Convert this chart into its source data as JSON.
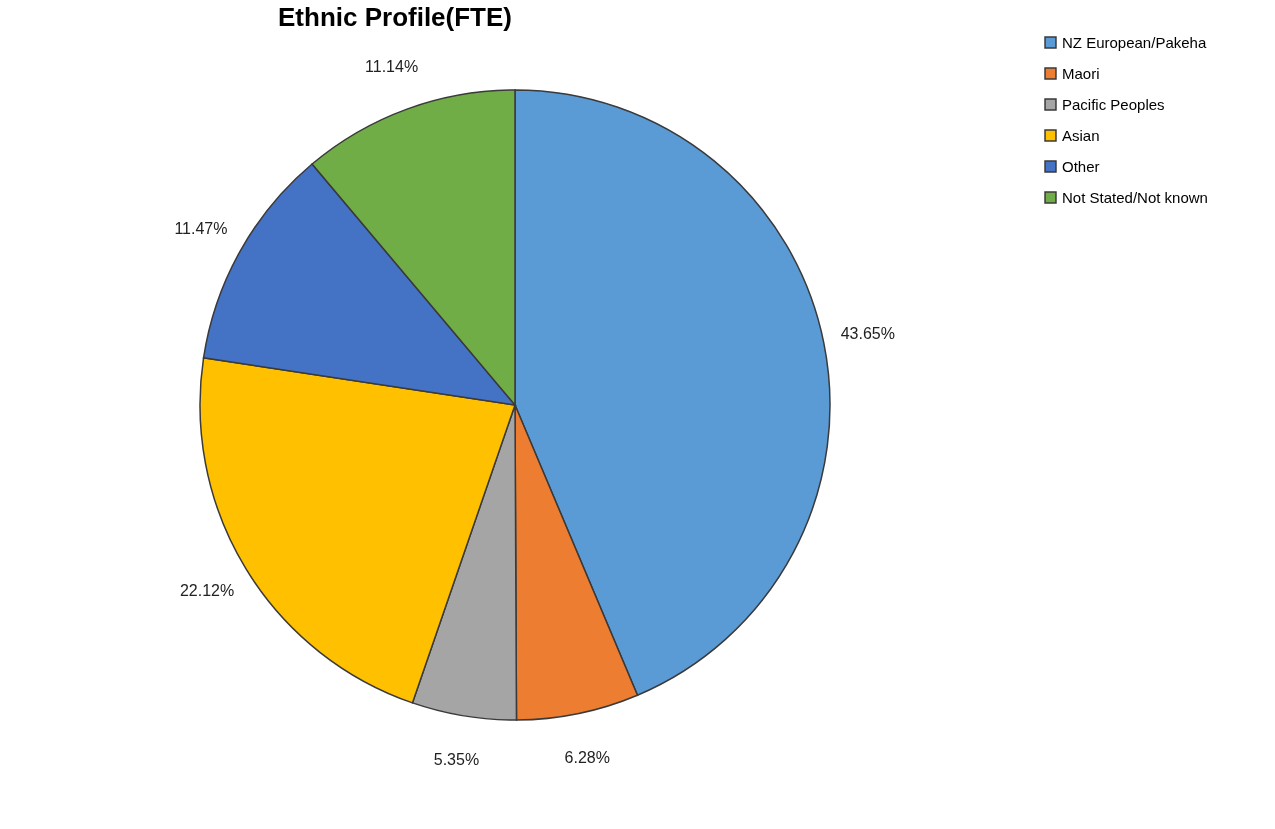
{
  "chart_data": {
    "type": "pie",
    "title": "Ethnic Profile(FTE)",
    "categories": [
      "NZ European/Pakeha",
      "Maori",
      "Pacific Peoples",
      "Asian",
      "Other",
      "Not Stated/Not known"
    ],
    "values": [
      43.65,
      6.28,
      5.35,
      22.12,
      11.47,
      11.14
    ],
    "colors": [
      "#5b9bd5",
      "#ed7d31",
      "#a5a5a5",
      "#ffc000",
      "#4472c4",
      "#70ad47"
    ],
    "value_labels": [
      "43.65%",
      "6.28%",
      "5.35%",
      "22.12%",
      "11.47%",
      "11.14%"
    ],
    "legend": "right"
  }
}
